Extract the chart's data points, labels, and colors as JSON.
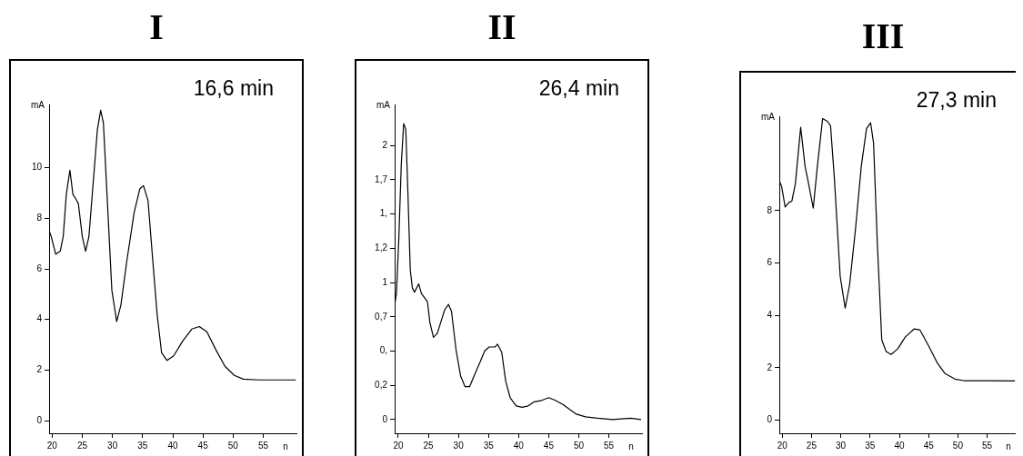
{
  "chart_data": [
    {
      "type": "line",
      "title": "I",
      "annotations": [
        "16,6 min"
      ],
      "xlabel": "n",
      "ylabel": "mA",
      "marker": "none",
      "xlim": [
        19.5,
        60.5
      ],
      "xticks": [
        20,
        25,
        30,
        35,
        40,
        45,
        50,
        55
      ],
      "ylim": [
        -0.5,
        12.5
      ],
      "yticks": [
        0,
        2,
        4,
        6,
        8,
        10
      ],
      "series": [
        {
          "color": "#000000",
          "x": [
            19.5,
            19.85,
            20.6,
            21.35,
            21.85,
            22.35,
            22.95,
            23.45,
            23.85,
            24.35,
            25.0,
            25.55,
            26.1,
            26.85,
            27.5,
            28.05,
            28.5,
            29.1,
            29.9,
            30.7,
            31.4,
            32.4,
            33.6,
            34.55,
            35.15,
            35.9,
            36.6,
            37.4,
            38.15,
            39.05,
            40.15,
            41.65,
            43.15,
            44.4,
            45.65,
            47.15,
            48.65,
            50.2,
            51.7,
            54.2,
            60.4
          ],
          "values": [
            7.52,
            7.28,
            6.58,
            6.7,
            7.3,
            8.94,
            9.9,
            8.94,
            8.8,
            8.58,
            7.28,
            6.7,
            7.28,
            9.53,
            11.5,
            12.27,
            11.77,
            8.94,
            5.16,
            3.92,
            4.57,
            6.34,
            8.23,
            9.17,
            9.29,
            8.7,
            6.58,
            4.22,
            2.68,
            2.38,
            2.56,
            3.15,
            3.62,
            3.72,
            3.51,
            2.8,
            2.15,
            1.79,
            1.64,
            1.61,
            1.61
          ]
        }
      ]
    },
    {
      "type": "line",
      "title": "II",
      "annotations": [
        "26,4 min"
      ],
      "xlabel": "n",
      "ylabel": "mA",
      "marker": "none",
      "xlim": [
        19.4,
        60.5
      ],
      "xticks": [
        20,
        25,
        30,
        35,
        40,
        45,
        50,
        55
      ],
      "ylim": [
        -0.1,
        2.3
      ],
      "yticks": [
        0,
        {
          "value": 0.25,
          "label": "0,2"
        },
        {
          "value": 0.5,
          "label": "0,"
        },
        {
          "value": 0.75,
          "label": "0,7"
        },
        1,
        {
          "value": 1.25,
          "label": "1,2"
        },
        {
          "value": 1.5,
          "label": "1,"
        },
        {
          "value": 1.75,
          "label": "1,7"
        },
        2
      ],
      "series": [
        {
          "color": "#000000",
          "x": [
            19.45,
            19.7,
            20.1,
            20.5,
            20.9,
            21.25,
            21.6,
            22.0,
            22.35,
            22.7,
            23.4,
            23.85,
            24.35,
            24.85,
            25.25,
            25.85,
            26.5,
            27.2,
            27.7,
            28.35,
            28.85,
            29.6,
            30.35,
            31.1,
            31.85,
            32.6,
            33.6,
            34.35,
            35.1,
            36.1,
            36.5,
            37.2,
            37.85,
            38.6,
            39.6,
            40.6,
            41.6,
            42.6,
            43.85,
            45.0,
            46.1,
            47.35,
            48.6,
            49.6,
            51.1,
            53.1,
            55.6,
            58.6,
            60.35
          ],
          "values": [
            0.85,
            0.92,
            1.33,
            1.86,
            2.16,
            2.12,
            1.66,
            1.09,
            0.96,
            0.93,
            0.99,
            0.92,
            0.89,
            0.86,
            0.71,
            0.6,
            0.63,
            0.73,
            0.8,
            0.84,
            0.79,
            0.51,
            0.32,
            0.24,
            0.24,
            0.32,
            0.42,
            0.5,
            0.53,
            0.53,
            0.55,
            0.49,
            0.28,
            0.16,
            0.1,
            0.09,
            0.1,
            0.13,
            0.14,
            0.16,
            0.14,
            0.11,
            0.07,
            0.04,
            0.02,
            0.01,
            0.0,
            0.01,
            0.0
          ]
        }
      ]
    },
    {
      "type": "line",
      "title": "III",
      "annotations": [
        "27,3 min"
      ],
      "xlabel": "n",
      "ylabel": "mA",
      "marker": "none",
      "xlim": [
        19.5,
        60.5
      ],
      "xticks": [
        20,
        25,
        30,
        35,
        40,
        45,
        50,
        55
      ],
      "ylim": [
        -0.5,
        11.6
      ],
      "yticks": [
        0,
        2,
        4,
        6,
        8
      ],
      "series": [
        {
          "color": "#000000",
          "x": [
            19.5,
            19.9,
            20.5,
            21.15,
            21.65,
            22.25,
            23.15,
            23.9,
            24.4,
            25.3,
            26.0,
            26.9,
            27.75,
            28.25,
            28.9,
            29.9,
            30.75,
            31.5,
            32.5,
            33.5,
            34.4,
            35.1,
            35.6,
            36.25,
            37.0,
            37.75,
            38.6,
            39.75,
            41.0,
            42.5,
            43.5,
            45.0,
            46.5,
            47.75,
            49.5,
            51.0,
            55.5,
            59.75
          ],
          "values": [
            9.14,
            8.92,
            8.14,
            8.31,
            8.36,
            9.03,
            11.18,
            9.69,
            9.14,
            8.09,
            9.69,
            11.51,
            11.4,
            11.24,
            9.25,
            5.49,
            4.28,
            5.16,
            7.26,
            9.69,
            11.13,
            11.35,
            10.57,
            6.71,
            3.06,
            2.62,
            2.51,
            2.73,
            3.17,
            3.48,
            3.45,
            2.84,
            2.18,
            1.79,
            1.57,
            1.51,
            1.51,
            1.5
          ]
        }
      ]
    }
  ]
}
